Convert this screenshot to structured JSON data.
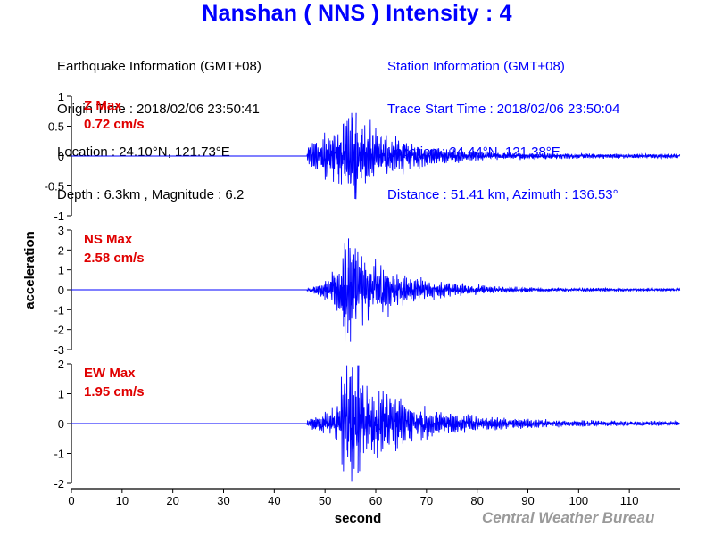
{
  "title": "Nanshan ( NNS ) Intensity : 4",
  "earthquake_info": [
    "Earthquake Information (GMT+08)",
    "Origin Time : 2018/02/06 23:50:41",
    "Location : 24.10°N, 121.73°E",
    "Depth : 6.3km , Magnitude : 6.2"
  ],
  "station_info": [
    "Station Information (GMT+08)",
    "Trace Start Time : 2018/02/06 23:50:04",
    "Location : 24.44°N, 121.38°E",
    "Distance : 51.41 km, Azimuth : 136.53°"
  ],
  "credit": "Central Weather Bureau",
  "colors": {
    "title": "#0000ff",
    "trace": "#0000ff",
    "max_label": "#e00000",
    "station_info": "#0000ff",
    "credit": "#9a9a9a"
  },
  "chart_data": {
    "type": "line",
    "xlabel": "second",
    "ylabel": "acceleration",
    "xlim": [
      0,
      120
    ],
    "x_ticks": [
      0,
      10,
      20,
      30,
      40,
      50,
      60,
      70,
      80,
      90,
      100,
      110
    ],
    "grid": false,
    "panels": [
      {
        "label_line1": "Z Max",
        "label_line2": "0.72 cm/s",
        "ylim": [
          -1,
          1
        ],
        "y_ticks": [
          1,
          0.5,
          0,
          -0.5,
          -1
        ],
        "y_tick_labels": [
          "1",
          "0.5",
          "0",
          "-0.5",
          "-1"
        ],
        "signal_onset_s": 46.5,
        "peak_time_s": 56,
        "peak_value": 0.72,
        "envelope": [
          [
            46.5,
            0.12
          ],
          [
            48,
            0.22
          ],
          [
            50,
            0.3
          ],
          [
            52,
            0.38
          ],
          [
            54,
            0.58
          ],
          [
            56,
            0.72
          ],
          [
            58,
            0.5
          ],
          [
            60,
            0.35
          ],
          [
            64,
            0.25
          ],
          [
            68,
            0.18
          ],
          [
            72,
            0.12
          ],
          [
            78,
            0.08
          ],
          [
            85,
            0.05
          ],
          [
            95,
            0.035
          ],
          [
            110,
            0.03
          ],
          [
            120,
            0.03
          ]
        ]
      },
      {
        "label_line1": "NS Max",
        "label_line2": "2.58 cm/s",
        "ylim": [
          -3,
          3
        ],
        "y_ticks": [
          3,
          2,
          1,
          0,
          -1,
          -2,
          -3
        ],
        "y_tick_labels": [
          "3",
          "2",
          "1",
          "0",
          "-1",
          "-2",
          "-3"
        ],
        "signal_onset_s": 46.5,
        "peak_time_s": 54.5,
        "peak_value": 2.58,
        "envelope": [
          [
            46.5,
            0.05
          ],
          [
            48,
            0.15
          ],
          [
            50,
            0.35
          ],
          [
            52,
            0.8
          ],
          [
            54,
            2.3
          ],
          [
            55,
            2.58
          ],
          [
            57,
            1.8
          ],
          [
            60,
            1.3
          ],
          [
            64,
            0.7
          ],
          [
            68,
            0.45
          ],
          [
            72,
            0.35
          ],
          [
            78,
            0.22
          ],
          [
            85,
            0.12
          ],
          [
            95,
            0.08
          ],
          [
            110,
            0.06
          ],
          [
            120,
            0.05
          ]
        ]
      },
      {
        "label_line1": "EW Max",
        "label_line2": "1.95 cm/s",
        "ylim": [
          -2,
          2
        ],
        "y_ticks": [
          2,
          1,
          0,
          -1,
          -2
        ],
        "y_tick_labels": [
          "2",
          "1",
          "0",
          "-1",
          "-2"
        ],
        "signal_onset_s": 46.5,
        "peak_time_s": 56.5,
        "peak_value": 1.95,
        "envelope": [
          [
            46.5,
            0.1
          ],
          [
            48,
            0.2
          ],
          [
            50,
            0.3
          ],
          [
            52,
            0.55
          ],
          [
            54,
            1.6
          ],
          [
            56,
            1.95
          ],
          [
            58,
            1.3
          ],
          [
            60,
            0.9
          ],
          [
            64,
            0.75
          ],
          [
            68,
            0.5
          ],
          [
            72,
            0.35
          ],
          [
            78,
            0.22
          ],
          [
            85,
            0.15
          ],
          [
            95,
            0.1
          ],
          [
            110,
            0.07
          ],
          [
            120,
            0.06
          ]
        ]
      }
    ]
  }
}
